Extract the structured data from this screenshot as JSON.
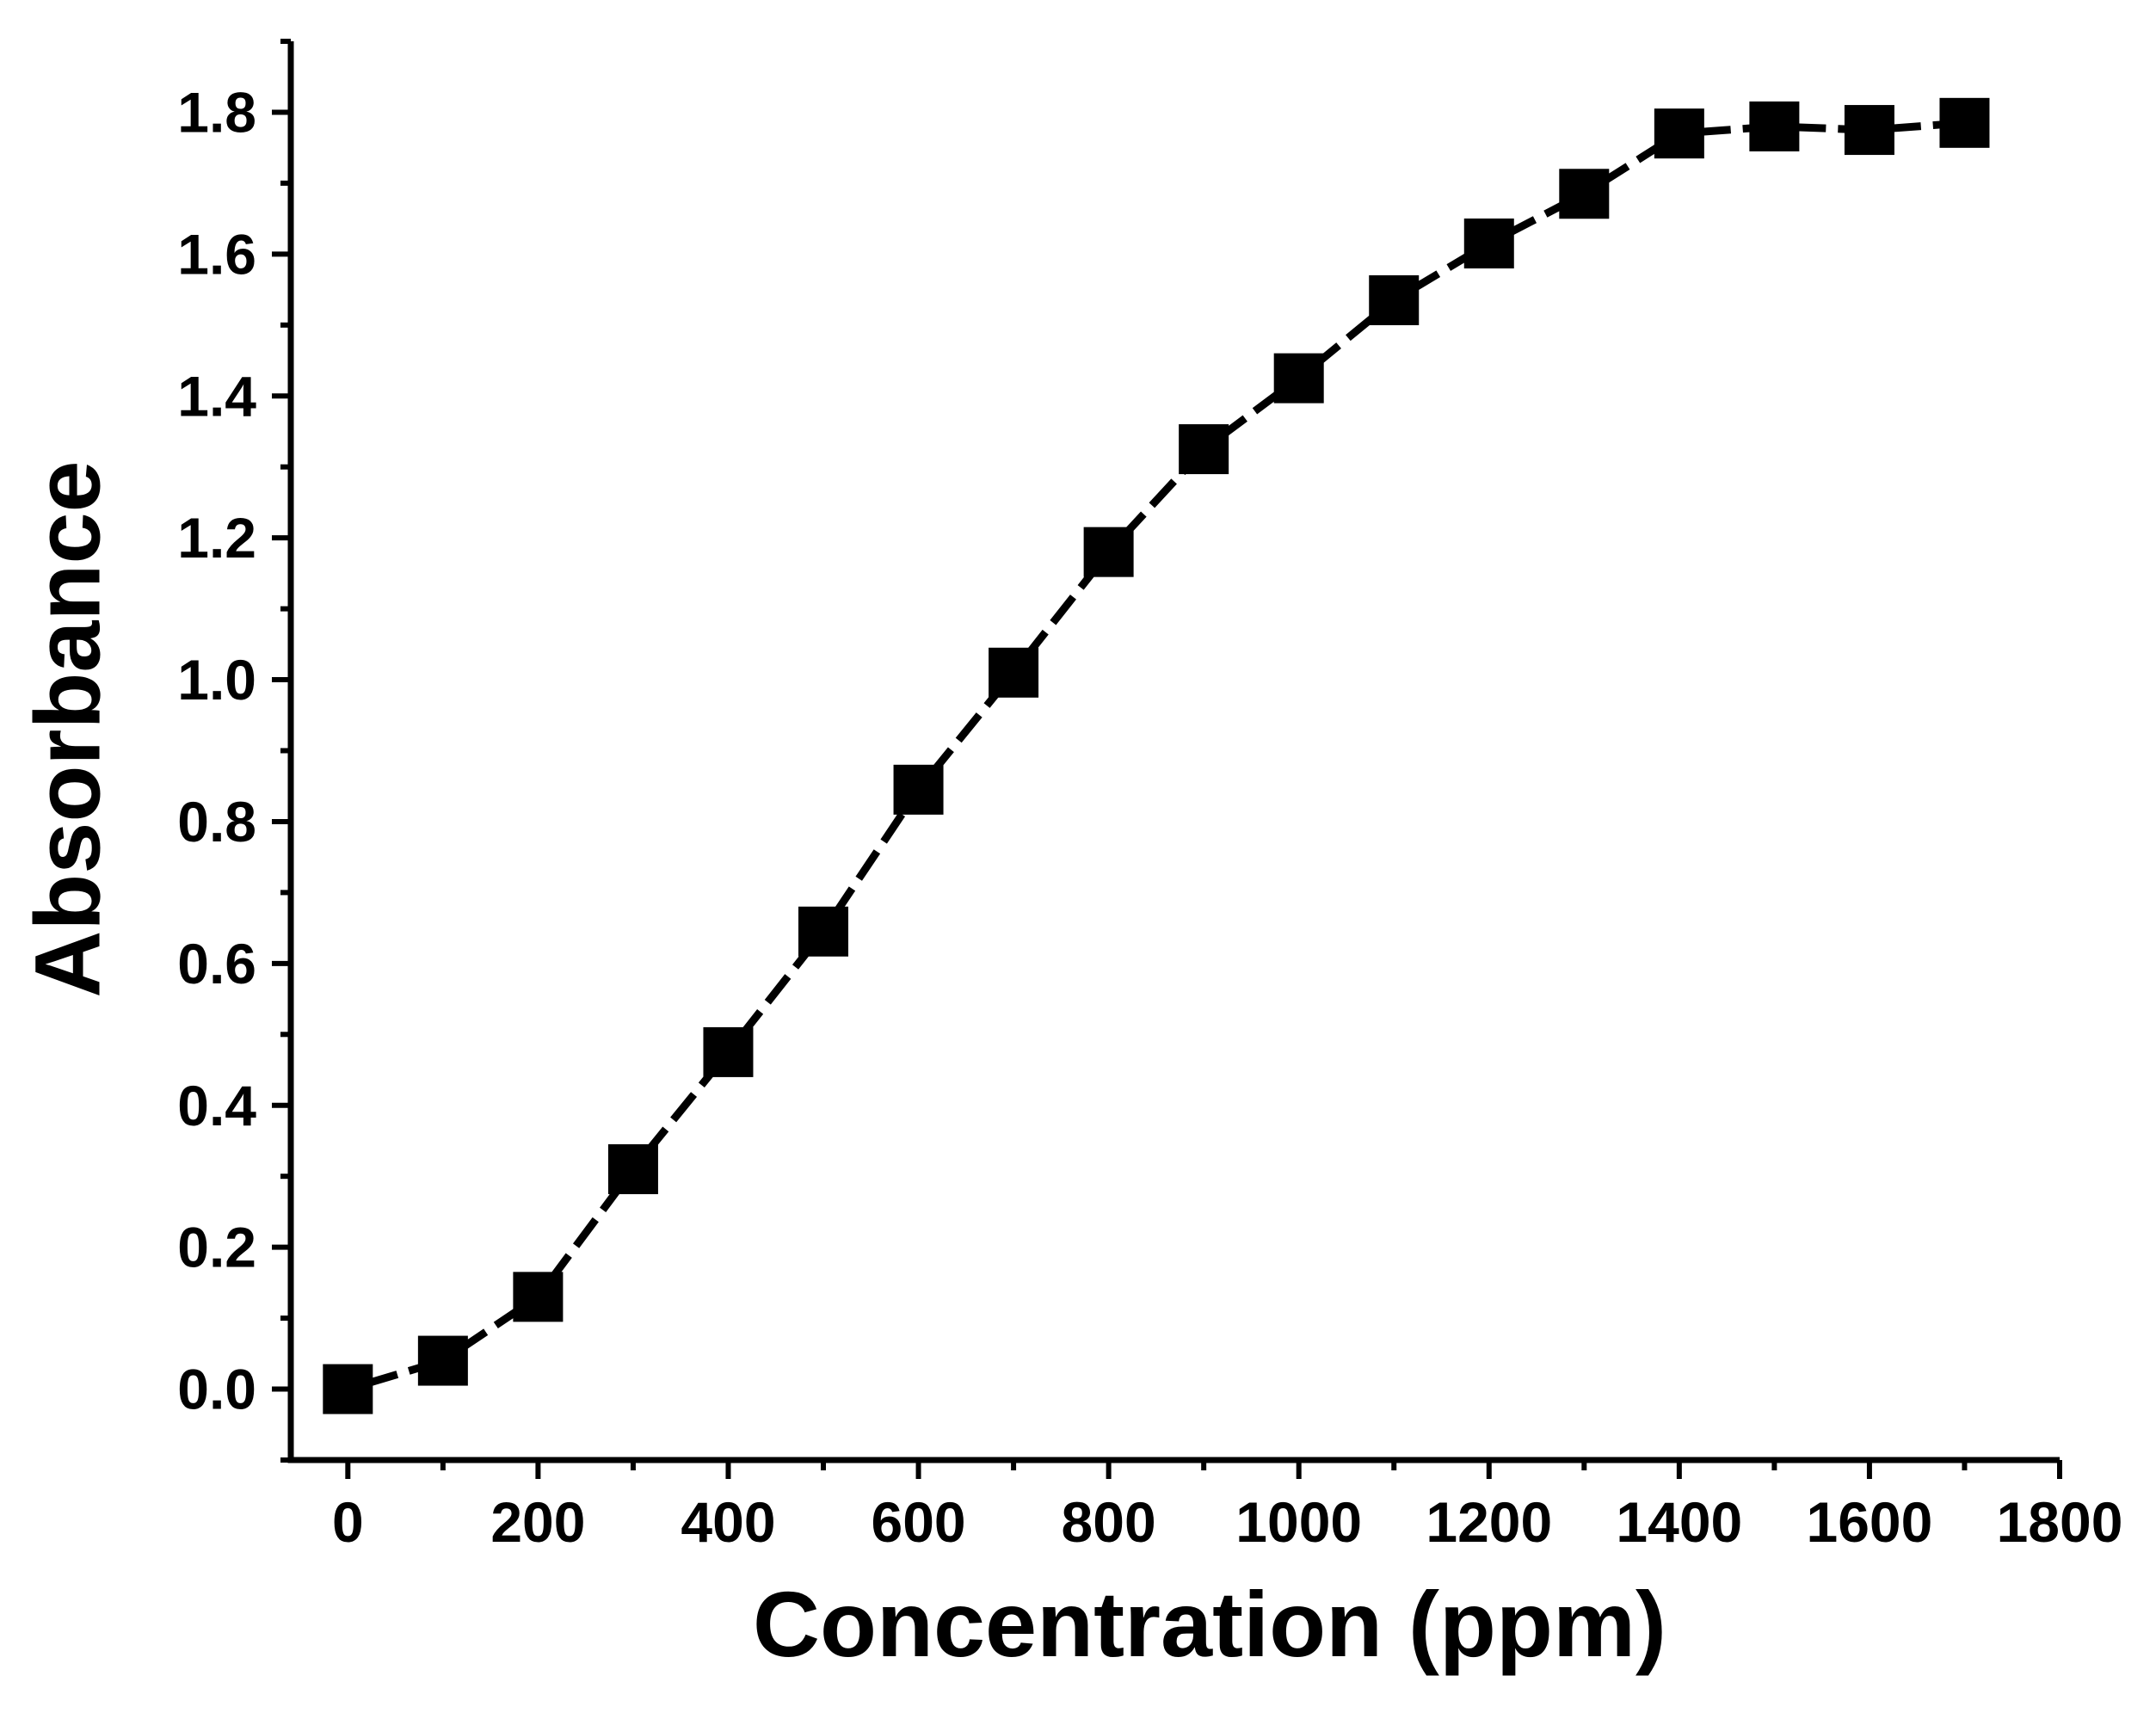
{
  "chart_data": {
    "type": "line",
    "title": "",
    "xlabel": "Concentration (ppm)",
    "ylabel": "Absorbance",
    "xlim": [
      -60,
      1800
    ],
    "ylim": [
      -0.1,
      1.9
    ],
    "xticks": [
      0,
      200,
      400,
      600,
      800,
      1000,
      1200,
      1400,
      1600,
      1800
    ],
    "xtick_labels": [
      "0",
      "200",
      "400",
      "600",
      "800",
      "1000",
      "1200",
      "1400",
      "1600",
      "1800"
    ],
    "xminor_ticks": [
      100,
      300,
      500,
      700,
      900,
      1100,
      1300,
      1500,
      1700
    ],
    "yticks": [
      0.0,
      0.2,
      0.4,
      0.6,
      0.8,
      1.0,
      1.2,
      1.4,
      1.6,
      1.8
    ],
    "ytick_labels": [
      "0.0",
      "0.2",
      "0.4",
      "0.6",
      "0.8",
      "1.0",
      "1.2",
      "1.4",
      "1.6",
      "1.8"
    ],
    "yminor_ticks": [
      -0.1,
      0.1,
      0.3,
      0.5,
      0.7,
      0.9,
      1.1,
      1.3,
      1.5,
      1.7,
      1.9
    ],
    "grid": false,
    "legend": "none",
    "series": [
      {
        "name": "Absorbance",
        "marker": "square",
        "line_style": "dashed",
        "color": "#000000",
        "x": [
          0,
          100,
          200,
          300,
          400,
          500,
          600,
          700,
          800,
          900,
          1000,
          1100,
          1200,
          1300,
          1400,
          1500,
          1600,
          1700
        ],
        "y": [
          0.0,
          0.04,
          0.13,
          0.31,
          0.475,
          0.645,
          0.845,
          1.01,
          1.18,
          1.325,
          1.425,
          1.535,
          1.615,
          1.685,
          1.77,
          1.78,
          1.775,
          1.785
        ]
      }
    ]
  }
}
